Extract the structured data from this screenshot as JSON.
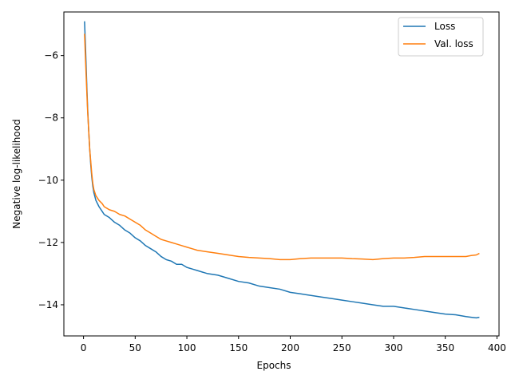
{
  "chart_data": {
    "type": "line",
    "title": "",
    "xlabel": "Epochs",
    "ylabel": "Negative log-likelihood",
    "xlim": [
      -19,
      402
    ],
    "ylim": [
      -15.0,
      -4.6
    ],
    "x_ticks": [
      0,
      50,
      100,
      150,
      200,
      250,
      300,
      350,
      400
    ],
    "y_ticks": [
      -14,
      -12,
      -10,
      -8,
      -6
    ],
    "x_tick_labels": [
      "0",
      "50",
      "100",
      "150",
      "200",
      "250",
      "300",
      "350",
      "400"
    ],
    "y_tick_labels": [
      "−14",
      "−12",
      "−10",
      "−8",
      "−6"
    ],
    "grid": false,
    "legend_position": "top-right",
    "series": [
      {
        "name": "Loss",
        "color": "#1f77b4",
        "points": [
          [
            1,
            -4.9
          ],
          [
            2,
            -5.8
          ],
          [
            3,
            -6.8
          ],
          [
            4,
            -7.7
          ],
          [
            5,
            -8.4
          ],
          [
            6,
            -9.0
          ],
          [
            7,
            -9.5
          ],
          [
            8,
            -9.9
          ],
          [
            9,
            -10.2
          ],
          [
            10,
            -10.4
          ],
          [
            12,
            -10.65
          ],
          [
            15,
            -10.85
          ],
          [
            18,
            -11.0
          ],
          [
            20,
            -11.1
          ],
          [
            25,
            -11.2
          ],
          [
            30,
            -11.35
          ],
          [
            35,
            -11.45
          ],
          [
            40,
            -11.6
          ],
          [
            45,
            -11.7
          ],
          [
            50,
            -11.85
          ],
          [
            55,
            -11.95
          ],
          [
            60,
            -12.1
          ],
          [
            65,
            -12.2
          ],
          [
            70,
            -12.3
          ],
          [
            75,
            -12.45
          ],
          [
            80,
            -12.55
          ],
          [
            85,
            -12.6
          ],
          [
            90,
            -12.7
          ],
          [
            95,
            -12.7
          ],
          [
            100,
            -12.8
          ],
          [
            105,
            -12.85
          ],
          [
            110,
            -12.9
          ],
          [
            115,
            -12.95
          ],
          [
            120,
            -13.0
          ],
          [
            130,
            -13.05
          ],
          [
            140,
            -13.15
          ],
          [
            150,
            -13.25
          ],
          [
            160,
            -13.3
          ],
          [
            170,
            -13.4
          ],
          [
            180,
            -13.45
          ],
          [
            190,
            -13.5
          ],
          [
            200,
            -13.6
          ],
          [
            210,
            -13.65
          ],
          [
            220,
            -13.7
          ],
          [
            230,
            -13.75
          ],
          [
            240,
            -13.8
          ],
          [
            250,
            -13.85
          ],
          [
            260,
            -13.9
          ],
          [
            270,
            -13.95
          ],
          [
            280,
            -14.0
          ],
          [
            290,
            -14.05
          ],
          [
            300,
            -14.05
          ],
          [
            310,
            -14.1
          ],
          [
            320,
            -14.15
          ],
          [
            330,
            -14.2
          ],
          [
            340,
            -14.25
          ],
          [
            350,
            -14.3
          ],
          [
            360,
            -14.32
          ],
          [
            370,
            -14.38
          ],
          [
            375,
            -14.4
          ],
          [
            380,
            -14.42
          ],
          [
            383,
            -14.4
          ]
        ]
      },
      {
        "name": "Val. loss",
        "color": "#ff7f0e",
        "points": [
          [
            1,
            -5.3
          ],
          [
            2,
            -6.2
          ],
          [
            3,
            -7.0
          ],
          [
            4,
            -7.8
          ],
          [
            5,
            -8.4
          ],
          [
            6,
            -9.0
          ],
          [
            7,
            -9.4
          ],
          [
            8,
            -9.8
          ],
          [
            9,
            -10.1
          ],
          [
            10,
            -10.3
          ],
          [
            12,
            -10.5
          ],
          [
            15,
            -10.65
          ],
          [
            18,
            -10.75
          ],
          [
            20,
            -10.85
          ],
          [
            25,
            -10.95
          ],
          [
            30,
            -11.0
          ],
          [
            35,
            -11.1
          ],
          [
            40,
            -11.15
          ],
          [
            45,
            -11.25
          ],
          [
            50,
            -11.35
          ],
          [
            55,
            -11.45
          ],
          [
            60,
            -11.6
          ],
          [
            65,
            -11.7
          ],
          [
            70,
            -11.8
          ],
          [
            75,
            -11.9
          ],
          [
            80,
            -11.95
          ],
          [
            85,
            -12.0
          ],
          [
            90,
            -12.05
          ],
          [
            95,
            -12.1
          ],
          [
            100,
            -12.15
          ],
          [
            105,
            -12.2
          ],
          [
            110,
            -12.25
          ],
          [
            120,
            -12.3
          ],
          [
            130,
            -12.35
          ],
          [
            140,
            -12.4
          ],
          [
            150,
            -12.45
          ],
          [
            160,
            -12.48
          ],
          [
            170,
            -12.5
          ],
          [
            180,
            -12.52
          ],
          [
            190,
            -12.55
          ],
          [
            200,
            -12.55
          ],
          [
            210,
            -12.52
          ],
          [
            220,
            -12.5
          ],
          [
            230,
            -12.5
          ],
          [
            240,
            -12.5
          ],
          [
            250,
            -12.5
          ],
          [
            260,
            -12.52
          ],
          [
            270,
            -12.53
          ],
          [
            280,
            -12.55
          ],
          [
            290,
            -12.52
          ],
          [
            300,
            -12.5
          ],
          [
            310,
            -12.5
          ],
          [
            320,
            -12.48
          ],
          [
            330,
            -12.45
          ],
          [
            340,
            -12.45
          ],
          [
            350,
            -12.45
          ],
          [
            360,
            -12.45
          ],
          [
            370,
            -12.45
          ],
          [
            375,
            -12.42
          ],
          [
            380,
            -12.4
          ],
          [
            383,
            -12.35
          ]
        ]
      }
    ]
  }
}
